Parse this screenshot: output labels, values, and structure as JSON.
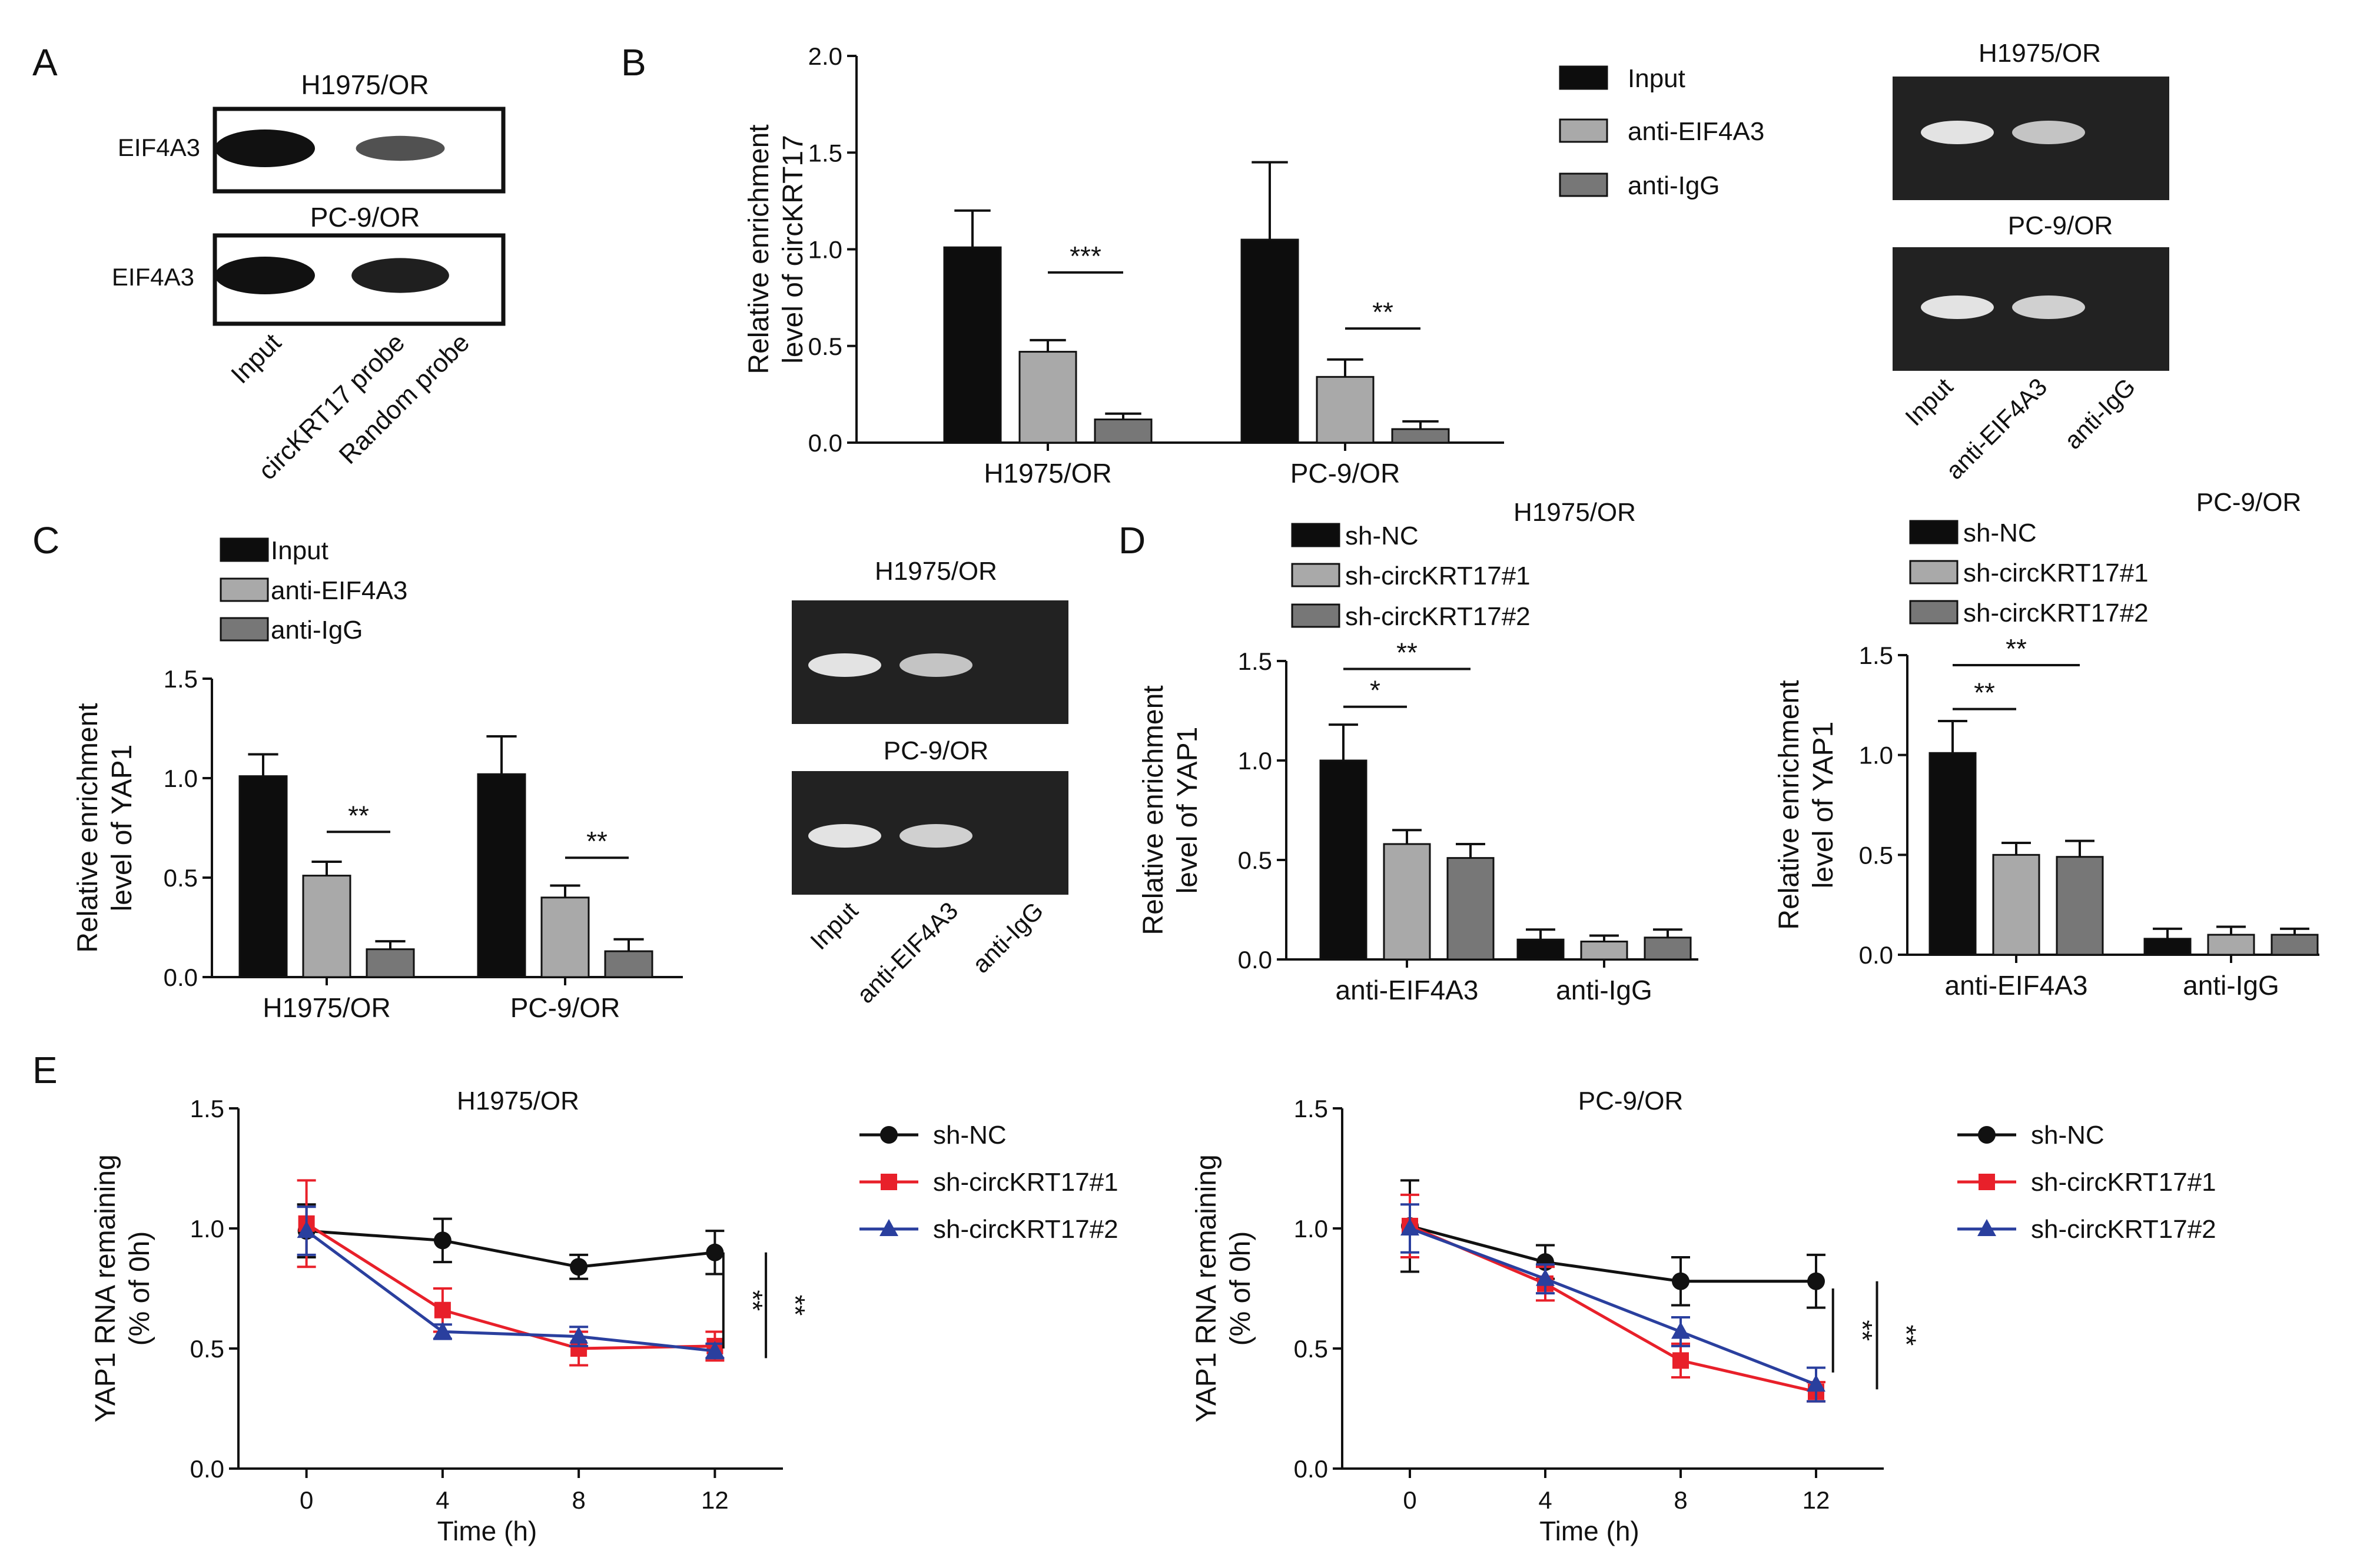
{
  "panels": {
    "A": {
      "letter": "A",
      "blots": [
        {
          "cell": "H1975/OR",
          "protein": "EIF4A3",
          "bands": [
            1.0,
            0.55,
            0.0
          ]
        },
        {
          "cell": "PC-9/OR",
          "protein": "EIF4A3",
          "bands": [
            1.0,
            0.9,
            0.0
          ]
        }
      ],
      "lanes": [
        "Input",
        "circKRT17 probe",
        "Random probe"
      ]
    },
    "B": {
      "letter": "B"
    },
    "C": {
      "letter": "C"
    },
    "D": {
      "letter": "D"
    },
    "E": {
      "letter": "E"
    }
  },
  "gels": [
    {
      "panel": "B",
      "top_title": "H1975/OR",
      "bottom_title": "PC-9/OR",
      "top_bands": [
        1.0,
        0.75,
        0.0
      ],
      "bottom_bands": [
        1.0,
        0.85,
        0.0
      ],
      "lanes": [
        "Input",
        "anti-EIF4A3",
        "anti-IgG"
      ]
    },
    {
      "panel": "C",
      "top_title": "H1975/OR",
      "bottom_title": "PC-9/OR",
      "top_bands": [
        1.0,
        0.75,
        0.0
      ],
      "bottom_bands": [
        1.0,
        0.85,
        0.0
      ],
      "lanes": [
        "Input",
        "anti-EIF4A3",
        "anti-IgG"
      ]
    }
  ],
  "colors": {
    "black_bar": "#0d0d0d",
    "light_gray_bar": "#a9a9a9",
    "dark_gray_bar": "#777777",
    "sh_nc": "#111111",
    "sh1": "#e8202a",
    "sh2": "#2a3f9e",
    "gel_bg": "#222222",
    "gel_band": "#eeeeee"
  },
  "chart_data": [
    {
      "id": "B",
      "type": "bar",
      "title": "",
      "ylabel": [
        "Relative enrichment",
        "level of circKRT17"
      ],
      "ylim": [
        0,
        2.0
      ],
      "yticks": [
        "0.0",
        "0.5",
        "1.0",
        "1.5",
        "2.0"
      ],
      "categories": [
        "H1975/OR",
        "PC-9/OR"
      ],
      "series": [
        {
          "name": "Input",
          "values": [
            1.01,
            1.05
          ],
          "errors": [
            0.19,
            0.4
          ]
        },
        {
          "name": "anti-EIF4A3",
          "values": [
            0.47,
            0.34
          ],
          "errors": [
            0.06,
            0.09
          ]
        },
        {
          "name": "anti-IgG",
          "values": [
            0.12,
            0.07
          ],
          "errors": [
            0.03,
            0.04
          ]
        }
      ],
      "significance": [
        {
          "label": "***",
          "category": 0,
          "from": 1,
          "to": 2,
          "y": 0.88
        },
        {
          "label": "**",
          "category": 1,
          "from": 1,
          "to": 2,
          "y": 0.59
        }
      ],
      "legend": [
        "Input",
        "anti-EIF4A3",
        "anti-IgG"
      ]
    },
    {
      "id": "C",
      "type": "bar",
      "title": "",
      "ylabel": [
        "Relative enrichment",
        "level of YAP1"
      ],
      "ylim": [
        0,
        1.5
      ],
      "yticks": [
        "0.0",
        "0.5",
        "1.0",
        "1.5"
      ],
      "categories": [
        "H1975/OR",
        "PC-9/OR"
      ],
      "series": [
        {
          "name": "Input",
          "values": [
            1.01,
            1.02
          ],
          "errors": [
            0.11,
            0.19
          ]
        },
        {
          "name": "anti-EIF4A3",
          "values": [
            0.51,
            0.4
          ],
          "errors": [
            0.07,
            0.06
          ]
        },
        {
          "name": "anti-IgG",
          "values": [
            0.14,
            0.13
          ],
          "errors": [
            0.04,
            0.06
          ]
        }
      ],
      "significance": [
        {
          "label": "**",
          "category": 0,
          "from": 1,
          "to": 2,
          "y": 0.73
        },
        {
          "label": "**",
          "category": 1,
          "from": 1,
          "to": 2,
          "y": 0.6
        }
      ],
      "legend": [
        "Input",
        "anti-EIF4A3",
        "anti-IgG"
      ]
    },
    {
      "id": "D1",
      "type": "bar",
      "title": "H1975/OR",
      "ylabel": [
        "Relative enrichment",
        "level of YAP1"
      ],
      "ylim": [
        0,
        1.5
      ],
      "yticks": [
        "0.0",
        "0.5",
        "1.0",
        "1.5"
      ],
      "categories": [
        "anti-EIF4A3",
        "anti-IgG"
      ],
      "series": [
        {
          "name": "sh-NC",
          "values": [
            1.0,
            0.1
          ],
          "errors": [
            0.18,
            0.05
          ]
        },
        {
          "name": "sh-circKRT17#1",
          "values": [
            0.58,
            0.09
          ],
          "errors": [
            0.07,
            0.03
          ]
        },
        {
          "name": "sh-circKRT17#2",
          "values": [
            0.51,
            0.11
          ],
          "errors": [
            0.07,
            0.04
          ]
        }
      ],
      "significance": [
        {
          "label": "*",
          "category": 0,
          "from": 0,
          "to": 1,
          "y": 1.27
        },
        {
          "label": "**",
          "category": 0,
          "from": 0,
          "to": 2,
          "y": 1.46
        }
      ],
      "legend": [
        "sh-NC",
        "sh-circKRT17#1",
        "sh-circKRT17#2"
      ]
    },
    {
      "id": "D2",
      "type": "bar",
      "title": "PC-9/OR",
      "ylabel": [
        "Relative enrichment",
        "level of YAP1"
      ],
      "ylim": [
        0,
        1.5
      ],
      "yticks": [
        "0.0",
        "0.5",
        "1.0",
        "1.5"
      ],
      "categories": [
        "anti-EIF4A3",
        "anti-IgG"
      ],
      "series": [
        {
          "name": "sh-NC",
          "values": [
            1.01,
            0.08
          ],
          "errors": [
            0.16,
            0.05
          ]
        },
        {
          "name": "sh-circKRT17#1",
          "values": [
            0.5,
            0.1
          ],
          "errors": [
            0.06,
            0.04
          ]
        },
        {
          "name": "sh-circKRT17#2",
          "values": [
            0.49,
            0.1
          ],
          "errors": [
            0.08,
            0.03
          ]
        }
      ],
      "significance": [
        {
          "label": "**",
          "category": 0,
          "from": 0,
          "to": 1,
          "y": 1.23
        },
        {
          "label": "**",
          "category": 0,
          "from": 0,
          "to": 2,
          "y": 1.45
        }
      ],
      "legend": [
        "sh-NC",
        "sh-circKRT17#1",
        "sh-circKRT17#2"
      ]
    },
    {
      "id": "E1",
      "type": "line",
      "title": "H1975/OR",
      "xlabel": "Time (h)",
      "ylabel": [
        "YAP1 RNA remaining",
        "(% of 0h)"
      ],
      "x": [
        0,
        4,
        8,
        12
      ],
      "xlim": [
        -2,
        14
      ],
      "xticks": [
        "0",
        "4",
        "8",
        "12"
      ],
      "ylim": [
        0,
        1.5
      ],
      "yticks": [
        "0.0",
        "0.5",
        "1.0",
        "1.5"
      ],
      "series": [
        {
          "name": "sh-NC",
          "marker": "circle",
          "values": [
            0.99,
            0.95,
            0.84,
            0.9
          ],
          "errors": [
            0.11,
            0.09,
            0.05,
            0.09
          ]
        },
        {
          "name": "sh-circKRT17#1",
          "marker": "square",
          "values": [
            1.02,
            0.66,
            0.5,
            0.51
          ],
          "errors": [
            0.18,
            0.09,
            0.07,
            0.06
          ]
        },
        {
          "name": "sh-circKRT17#2",
          "marker": "triangle",
          "values": [
            0.99,
            0.57,
            0.55,
            0.49
          ],
          "errors": [
            0.1,
            0.03,
            0.04,
            0.03
          ]
        }
      ],
      "significance": [
        {
          "label": "**",
          "x": 12.25,
          "y1": 0.5,
          "y2": 0.9
        },
        {
          "label": "**",
          "x": 13.5,
          "y1": 0.46,
          "y2": 0.9
        }
      ],
      "legend": [
        "sh-NC",
        "sh-circKRT17#1",
        "sh-circKRT17#2"
      ]
    },
    {
      "id": "E2",
      "type": "line",
      "title": "PC-9/OR",
      "xlabel": "Time (h)",
      "ylabel": [
        "YAP1 RNA remaining",
        "(% of 0h)"
      ],
      "x": [
        0,
        4,
        8,
        12
      ],
      "xlim": [
        -2,
        14
      ],
      "xticks": [
        "0",
        "4",
        "8",
        "12"
      ],
      "ylim": [
        0,
        1.5
      ],
      "yticks": [
        "0.0",
        "0.5",
        "1.0",
        "1.5"
      ],
      "series": [
        {
          "name": "sh-NC",
          "marker": "circle",
          "values": [
            1.01,
            0.86,
            0.78,
            0.78
          ],
          "errors": [
            0.19,
            0.07,
            0.1,
            0.11
          ]
        },
        {
          "name": "sh-circKRT17#1",
          "marker": "square",
          "values": [
            1.01,
            0.77,
            0.45,
            0.32
          ],
          "errors": [
            0.13,
            0.07,
            0.07,
            0.04
          ]
        },
        {
          "name": "sh-circKRT17#2",
          "marker": "triangle",
          "values": [
            1.0,
            0.79,
            0.57,
            0.35
          ],
          "errors": [
            0.1,
            0.06,
            0.06,
            0.07
          ]
        }
      ],
      "significance": [
        {
          "label": "**",
          "x": 12.5,
          "y1": 0.4,
          "y2": 0.75
        },
        {
          "label": "**",
          "x": 13.8,
          "y1": 0.33,
          "y2": 0.78
        }
      ],
      "legend": [
        "sh-NC",
        "sh-circKRT17#1",
        "sh-circKRT17#2"
      ]
    }
  ]
}
